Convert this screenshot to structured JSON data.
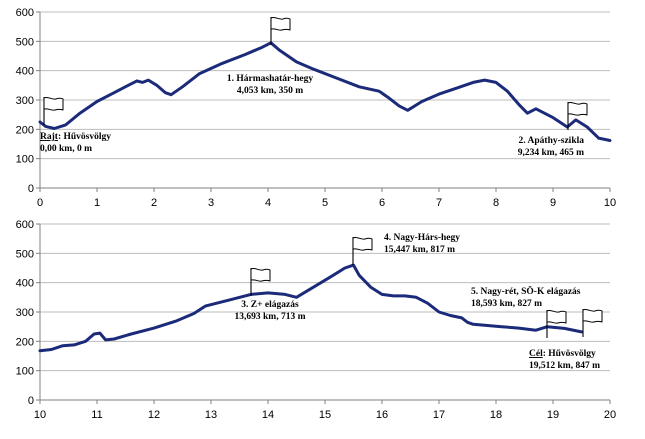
{
  "chart_data": [
    {
      "type": "line",
      "xlim": [
        0,
        10
      ],
      "ylim": [
        0,
        600
      ],
      "xticks": [
        0,
        1,
        2,
        3,
        4,
        5,
        6,
        7,
        8,
        9,
        10
      ],
      "yticks": [
        0,
        100,
        200,
        300,
        400,
        500,
        600
      ],
      "grid": "horizontal",
      "series": [
        {
          "x": [
            0,
            0.1,
            0.25,
            0.45,
            0.7,
            1.0,
            1.3,
            1.55,
            1.7,
            1.8,
            1.9,
            2.05,
            2.2,
            2.3,
            2.5,
            2.8,
            3.2,
            3.6,
            3.9,
            4.05,
            4.2,
            4.5,
            4.8,
            5.2,
            5.6,
            5.95,
            6.1,
            6.3,
            6.45,
            6.7,
            7.0,
            7.3,
            7.6,
            7.8,
            8.0,
            8.2,
            8.4,
            8.55,
            8.7,
            9.0,
            9.25,
            9.4,
            9.6,
            9.8,
            10.0
          ],
          "y": [
            225,
            210,
            203,
            215,
            255,
            295,
            325,
            350,
            365,
            360,
            368,
            350,
            325,
            318,
            345,
            390,
            425,
            455,
            480,
            495,
            470,
            430,
            405,
            375,
            345,
            330,
            310,
            280,
            265,
            295,
            320,
            340,
            360,
            368,
            360,
            330,
            285,
            255,
            270,
            240,
            208,
            232,
            208,
            170,
            162
          ]
        }
      ],
      "annotations": [
        {
          "lines": [
            {
              "pre": "",
              "u": "Rajt",
              "post": ": Hűvösvölgy"
            },
            {
              "pre": "0,00 km, 0 m",
              "u": "",
              "post": ""
            }
          ]
        },
        {
          "lines": [
            {
              "pre": "1. Hármashatár-hegy",
              "u": "",
              "post": ""
            },
            {
              "pre": "4,053 km, 350 m",
              "u": "",
              "post": ""
            }
          ]
        },
        {
          "lines": [
            {
              "pre": "2. Apáthy-szikla",
              "u": "",
              "post": ""
            },
            {
              "pre": "9,234 km, 465 m",
              "u": "",
              "post": ""
            }
          ]
        }
      ]
    },
    {
      "type": "line",
      "xlim": [
        10,
        20
      ],
      "ylim": [
        0,
        600
      ],
      "xticks": [
        10,
        11,
        12,
        13,
        14,
        15,
        16,
        17,
        18,
        19,
        20
      ],
      "yticks": [
        0,
        100,
        200,
        300,
        400,
        500,
        600
      ],
      "grid": "horizontal",
      "series": [
        {
          "x": [
            10.0,
            10.2,
            10.4,
            10.6,
            10.8,
            10.95,
            11.05,
            11.15,
            11.3,
            11.6,
            12.0,
            12.4,
            12.7,
            12.9,
            13.3,
            13.7,
            14.0,
            14.3,
            14.5,
            14.8,
            15.1,
            15.35,
            15.5,
            15.6,
            15.8,
            16.0,
            16.2,
            16.4,
            16.6,
            16.8,
            17.0,
            17.2,
            17.4,
            17.5,
            17.6,
            17.8,
            18.1,
            18.4,
            18.7,
            18.9,
            19.2,
            19.5
          ],
          "y": [
            168,
            172,
            185,
            188,
            200,
            225,
            228,
            205,
            208,
            225,
            245,
            270,
            295,
            320,
            340,
            360,
            365,
            360,
            350,
            385,
            420,
            450,
            460,
            425,
            385,
            360,
            355,
            355,
            350,
            330,
            300,
            288,
            280,
            265,
            258,
            255,
            250,
            245,
            238,
            250,
            244,
            232
          ]
        }
      ],
      "annotations": [
        {
          "lines": [
            {
              "pre": "3. Z+ elágazás",
              "u": "",
              "post": ""
            },
            {
              "pre": "13,693 km, 713 m",
              "u": "",
              "post": ""
            }
          ]
        },
        {
          "lines": [
            {
              "pre": "4. Nagy-Hárs-hegy",
              "u": "",
              "post": ""
            },
            {
              "pre": "15,447 km, 817 m",
              "u": "",
              "post": ""
            }
          ]
        },
        {
          "lines": [
            {
              "pre": "5. Nagy-rét, SÖ-K elágazás",
              "u": "",
              "post": ""
            },
            {
              "pre": "18,593 km, 827 m",
              "u": "",
              "post": ""
            }
          ]
        },
        {
          "lines": [
            {
              "pre": "",
              "u": "Cél",
              "post": ": Hűvösvölgy"
            },
            {
              "pre": "19,512 km, 847 m",
              "u": "",
              "post": ""
            }
          ]
        }
      ]
    }
  ]
}
